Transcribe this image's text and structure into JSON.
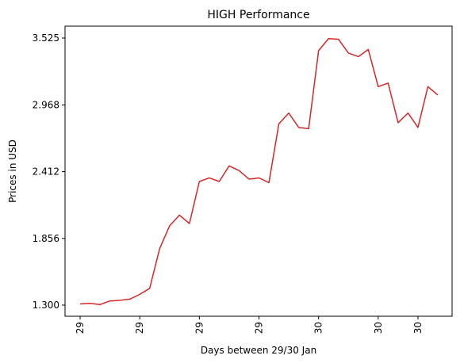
{
  "chart_data": {
    "type": "line",
    "title": "HIGH Performance",
    "xlabel": "Days between 29/30 Jan",
    "ylabel": "Prices in USD",
    "ylim": [
      1.3,
      3.525
    ],
    "yticks": [
      "1.300",
      "1.856",
      "2.412",
      "2.968",
      "3.525"
    ],
    "xtick_labels": [
      {
        "idx": 0,
        "label": "29"
      },
      {
        "idx": 6,
        "label": "29"
      },
      {
        "idx": 12,
        "label": "29"
      },
      {
        "idx": 18,
        "label": "29"
      },
      {
        "idx": 24,
        "label": "30"
      },
      {
        "idx": 30,
        "label": "30"
      },
      {
        "idx": 34,
        "label": "30"
      }
    ],
    "grid": false,
    "series": [
      {
        "color": "#d62728",
        "values": [
          1.31,
          1.315,
          1.305,
          1.335,
          1.34,
          1.35,
          1.39,
          1.44,
          1.77,
          1.96,
          2.05,
          1.98,
          2.33,
          2.36,
          2.33,
          2.46,
          2.42,
          2.35,
          2.36,
          2.32,
          2.81,
          2.9,
          2.78,
          2.77,
          3.42,
          3.52,
          3.515,
          3.4,
          3.37,
          3.43,
          3.12,
          3.15,
          2.82,
          2.9,
          2.78,
          3.12,
          3.05
        ]
      }
    ]
  }
}
